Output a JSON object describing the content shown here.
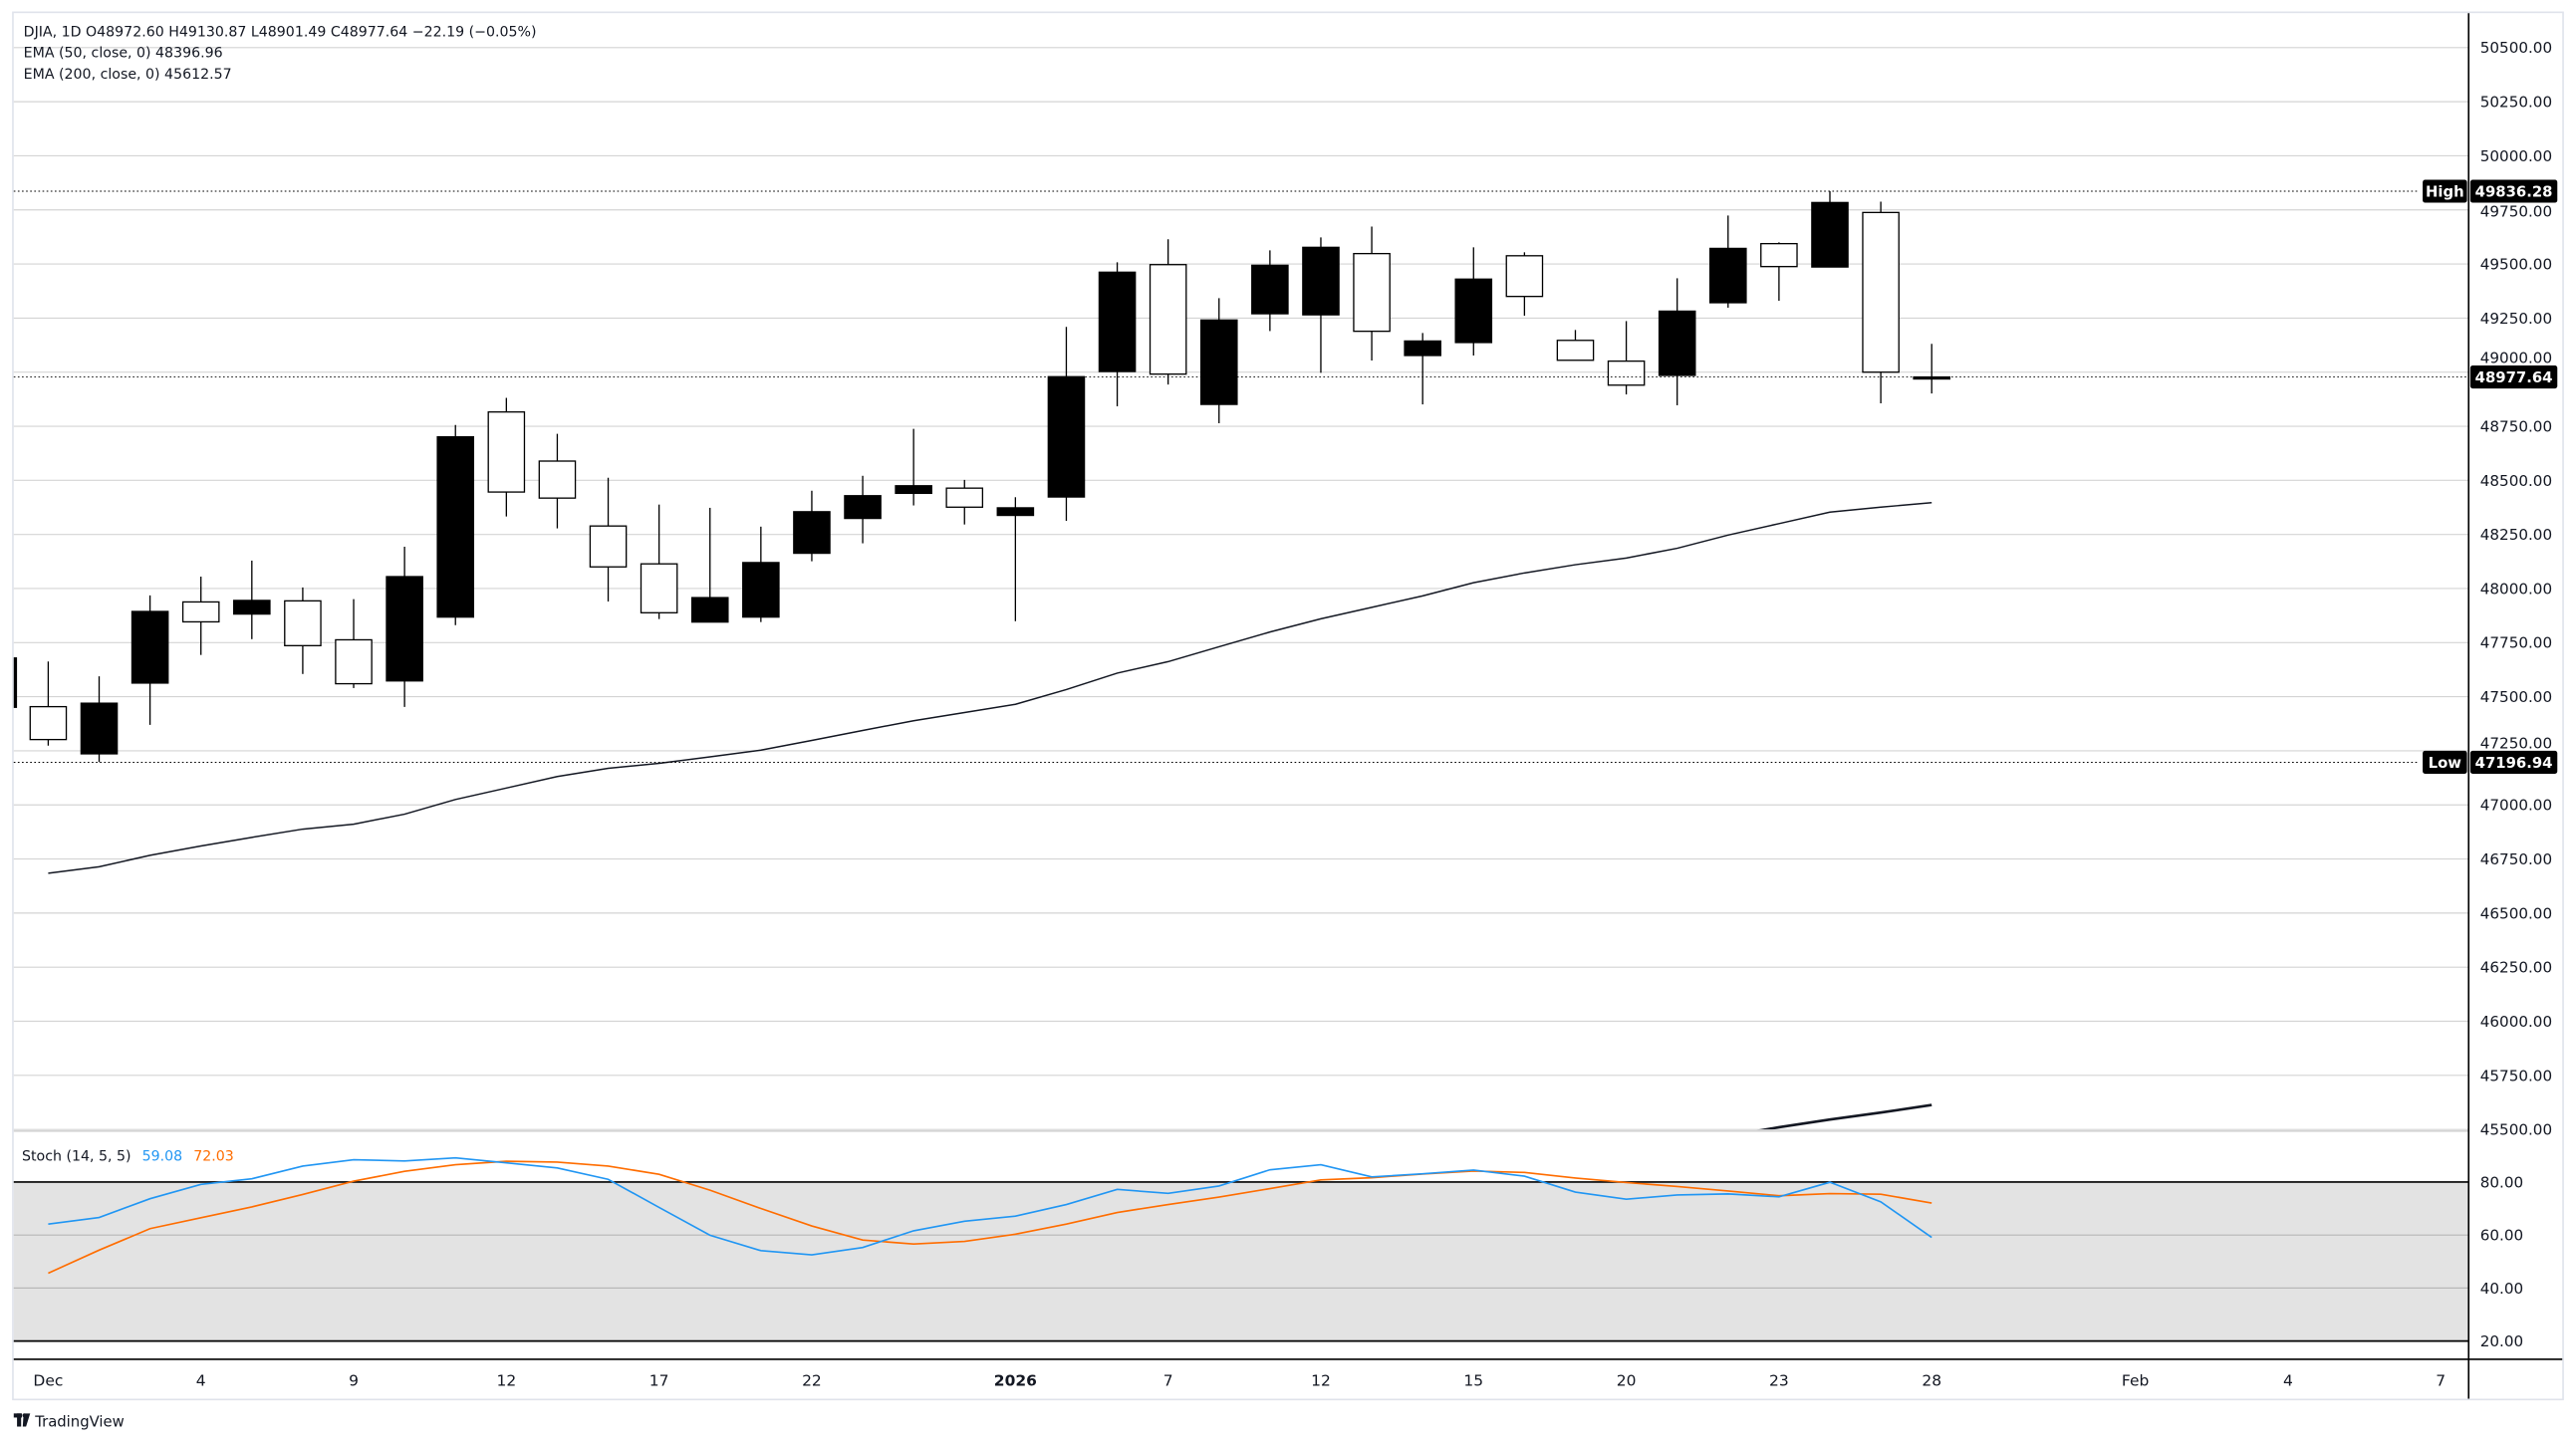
{
  "legend": {
    "main": "DJIA, 1D  O48972.60  H49130.87  L48901.49  C48977.64  −22.19 (−0.05%)",
    "ema50": "EMA (50, close, 0)  48396.96",
    "ema200": "EMA (200, close, 0)  45612.57",
    "stoch_label": "Stoch (14, 5, 5)",
    "stoch_k": "59.08",
    "stoch_d": "72.03"
  },
  "markers": {
    "high_label": "High",
    "high_value": "49836.28",
    "low_label": "Low",
    "low_value": "47196.94",
    "close_value": "48977.64"
  },
  "branding": {
    "logo_text": "TradingView"
  },
  "colors": {
    "bull": "#000000",
    "bear": "#ffffff",
    "stoch_k": "#2196f3",
    "stoch_d": "#ff6d00",
    "stoch_band": "#e3e3e3",
    "grid": "#d4d4d4"
  },
  "chart_data": [
    {
      "type": "candlestick",
      "symbol": "DJIA",
      "interval": "1D",
      "ylim": [
        45500,
        50500
      ],
      "y_ticks": [
        "50500.00",
        "50250.00",
        "50000.00",
        "49750.00",
        "49500.00",
        "49250.00",
        "49000.00",
        "48750.00",
        "48500.00",
        "48250.00",
        "48000.00",
        "47750.00",
        "47500.00",
        "47250.00",
        "47000.00",
        "46750.00",
        "46500.00",
        "46250.00",
        "46000.00",
        "45750.00",
        "45500.00"
      ],
      "x_ticks": [
        {
          "label": "Dec",
          "bar": 0
        },
        {
          "label": "4",
          "bar": 3
        },
        {
          "label": "9",
          "bar": 6
        },
        {
          "label": "12",
          "bar": 9
        },
        {
          "label": "17",
          "bar": 12
        },
        {
          "label": "22",
          "bar": 15
        },
        {
          "label": "2026",
          "bar": 19,
          "bold": true
        },
        {
          "label": "7",
          "bar": 22
        },
        {
          "label": "12",
          "bar": 25
        },
        {
          "label": "15",
          "bar": 28
        },
        {
          "label": "20",
          "bar": 31
        },
        {
          "label": "23",
          "bar": 34
        },
        {
          "label": "28",
          "bar": 37
        },
        {
          "label": "Feb",
          "bar": 41
        },
        {
          "label": "4",
          "bar": 44
        },
        {
          "label": "7",
          "bar": 47
        }
      ],
      "grid": true,
      "candles_ohlc": [
        [
          47454,
          47663,
          47274,
          47302
        ],
        [
          47236,
          47594,
          47198,
          47470
        ],
        [
          47563,
          47968,
          47370,
          47894
        ],
        [
          47938,
          48055,
          47693,
          47846
        ],
        [
          47882,
          48129,
          47766,
          47945
        ],
        [
          47943,
          48005,
          47605,
          47736
        ],
        [
          47763,
          47951,
          47540,
          47560
        ],
        [
          47573,
          48193,
          47453,
          48055
        ],
        [
          47868,
          48756,
          47831,
          48701
        ],
        [
          48816,
          48881,
          48333,
          48446
        ],
        [
          48589,
          48715,
          48278,
          48418
        ],
        [
          48289,
          48512,
          47940,
          48100
        ],
        [
          48114,
          48388,
          47859,
          47888
        ],
        [
          47845,
          48373,
          47845,
          47958
        ],
        [
          47868,
          48286,
          47845,
          48120
        ],
        [
          48163,
          48452,
          48126,
          48355
        ],
        [
          48324,
          48521,
          48209,
          48429
        ],
        [
          48440,
          48738,
          48384,
          48475
        ],
        [
          48464,
          48502,
          48296,
          48376
        ],
        [
          48338,
          48422,
          47849,
          48373
        ],
        [
          48423,
          49209,
          48313,
          48979
        ],
        [
          49003,
          49508,
          48842,
          49462
        ],
        [
          49497,
          49614,
          48943,
          48991
        ],
        [
          48851,
          49342,
          48764,
          49241
        ],
        [
          49270,
          49563,
          49190,
          49494
        ],
        [
          49265,
          49623,
          48997,
          49577
        ],
        [
          49548,
          49673,
          49054,
          49189
        ],
        [
          49077,
          49181,
          48851,
          49144
        ],
        [
          49137,
          49577,
          49077,
          49430
        ],
        [
          49538,
          49554,
          49261,
          49350
        ],
        [
          49147,
          49195,
          49055,
          49055
        ],
        [
          49051,
          49236,
          48897,
          48940
        ],
        [
          48985,
          49434,
          48847,
          49282
        ],
        [
          49321,
          49724,
          49298,
          49572
        ],
        [
          49594,
          49600,
          49330,
          49488
        ],
        [
          49486,
          49836.28,
          49486,
          49784
        ],
        [
          49738,
          49788,
          48856,
          49000
        ],
        [
          48972.6,
          49130.87,
          48901.49,
          48977.64
        ]
      ],
      "ema50": [
        46684,
        46714,
        46767,
        46810,
        46850,
        46888,
        46911,
        46957,
        47025,
        47078,
        47131,
        47169,
        47192,
        47222,
        47253,
        47298,
        47344,
        47389,
        47427,
        47465,
        47533,
        47609,
        47662,
        47731,
        47799,
        47860,
        47913,
        47966,
        48027,
        48072,
        48110,
        48141,
        48186,
        48247,
        48300,
        48353,
        48376,
        48397
      ],
      "ema200_last_bars": [
        45470,
        45510,
        45546,
        45578,
        45613
      ]
    },
    {
      "type": "line",
      "name": "Stoch (14, 5, 5)",
      "ylim": [
        20,
        80
      ],
      "y_ticks": [
        "80.00",
        "60.00",
        "40.00",
        "20.00"
      ],
      "k": [
        64.1,
        66.6,
        73.7,
        79.1,
        81.2,
        86,
        88.4,
        87.9,
        89.1,
        87.2,
        85.3,
        81,
        70.4,
        59.9,
        54.1,
        52.5,
        55.3,
        61.6,
        65.2,
        67.1,
        71.5,
        77.2,
        75.7,
        78.5,
        84.6,
        86.5,
        81.9,
        83.1,
        84.5,
        82.2,
        76.2,
        73.5,
        75.1,
        75.5,
        74.4,
        79.9,
        72.5,
        59.08
      ],
      "d": [
        45.6,
        54.3,
        62.4,
        66.5,
        70.6,
        75.3,
        80.3,
        84,
        86.5,
        87.8,
        87.5,
        86,
        82.9,
        76.9,
        70,
        63.4,
        58.1,
        56.6,
        57.6,
        60.3,
        64.1,
        68.5,
        71.5,
        74.3,
        77.5,
        80.8,
        81.6,
        83,
        84.1,
        83.6,
        81.5,
        79.8,
        78.3,
        76.6,
        74.8,
        75.6,
        75.4,
        72.03
      ]
    }
  ]
}
